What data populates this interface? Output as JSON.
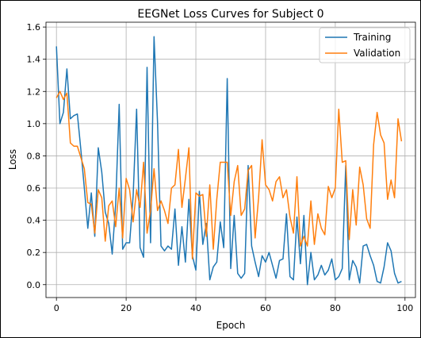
{
  "chart_data": {
    "type": "line",
    "title": "EEGNet Loss Curves for Subject 0",
    "xlabel": "Epoch",
    "ylabel": "Loss",
    "xlim": [
      -3,
      103
    ],
    "ylim": [
      -0.08,
      1.63
    ],
    "xticks": [
      0,
      20,
      40,
      60,
      80,
      100
    ],
    "yticks": [
      0.0,
      0.2,
      0.4,
      0.6,
      0.8,
      1.0,
      1.2,
      1.4,
      1.6
    ],
    "xtick_labels": [
      "0",
      "20",
      "40",
      "60",
      "80",
      "100"
    ],
    "ytick_labels": [
      "0.0",
      "0.2",
      "0.4",
      "0.6",
      "0.8",
      "1.0",
      "1.2",
      "1.4",
      "1.6"
    ],
    "grid": true,
    "legend_position": "top-right",
    "x": [
      0,
      1,
      2,
      3,
      4,
      5,
      6,
      7,
      8,
      9,
      10,
      11,
      12,
      13,
      14,
      15,
      16,
      17,
      18,
      19,
      20,
      21,
      22,
      23,
      24,
      25,
      26,
      27,
      28,
      29,
      30,
      31,
      32,
      33,
      34,
      35,
      36,
      37,
      38,
      39,
      40,
      41,
      42,
      43,
      44,
      45,
      46,
      47,
      48,
      49,
      50,
      51,
      52,
      53,
      54,
      55,
      56,
      57,
      58,
      59,
      60,
      61,
      62,
      63,
      64,
      65,
      66,
      67,
      68,
      69,
      70,
      71,
      72,
      73,
      74,
      75,
      76,
      77,
      78,
      79,
      80,
      81,
      82,
      83,
      84,
      85,
      86,
      87,
      88,
      89,
      90,
      91,
      92,
      93,
      94,
      95,
      96,
      97,
      98,
      99
    ],
    "series": [
      {
        "name": "Training",
        "color": "#1f77b4",
        "values": [
          1.48,
          1.0,
          1.07,
          1.34,
          1.03,
          1.05,
          1.06,
          0.84,
          0.6,
          0.35,
          0.57,
          0.3,
          0.85,
          0.7,
          0.45,
          0.38,
          0.19,
          0.5,
          1.12,
          0.22,
          0.26,
          0.26,
          0.55,
          1.09,
          0.23,
          0.17,
          1.35,
          0.26,
          1.54,
          1.01,
          0.24,
          0.21,
          0.24,
          0.22,
          0.47,
          0.12,
          0.36,
          0.14,
          0.53,
          0.18,
          0.09,
          0.58,
          0.25,
          0.38,
          0.03,
          0.11,
          0.14,
          0.39,
          0.23,
          1.28,
          0.1,
          0.43,
          0.07,
          0.04,
          0.07,
          0.74,
          0.24,
          0.14,
          0.05,
          0.18,
          0.14,
          0.2,
          0.12,
          0.04,
          0.15,
          0.16,
          0.44,
          0.05,
          0.03,
          0.42,
          0.13,
          0.43,
          0.0,
          0.2,
          0.03,
          0.06,
          0.12,
          0.06,
          0.09,
          0.16,
          0.03,
          0.05,
          0.1,
          0.74,
          0.03,
          0.15,
          0.11,
          0.01,
          0.24,
          0.25,
          0.18,
          0.12,
          0.02,
          0.01,
          0.11,
          0.26,
          0.21,
          0.07,
          0.01,
          0.02
        ]
      },
      {
        "name": "Validation",
        "color": "#ff7f0e",
        "values": [
          1.16,
          1.2,
          1.15,
          1.19,
          0.88,
          0.86,
          0.86,
          0.79,
          0.72,
          0.51,
          0.5,
          0.32,
          0.59,
          0.54,
          0.27,
          0.49,
          0.52,
          0.36,
          0.6,
          0.29,
          0.66,
          0.59,
          0.39,
          0.59,
          0.48,
          0.76,
          0.32,
          0.46,
          0.72,
          0.46,
          0.52,
          0.46,
          0.38,
          0.6,
          0.62,
          0.84,
          0.48,
          0.66,
          0.85,
          0.16,
          0.57,
          0.55,
          0.56,
          0.3,
          0.62,
          0.22,
          0.53,
          0.76,
          0.76,
          0.76,
          0.43,
          0.64,
          0.74,
          0.43,
          0.47,
          0.71,
          0.74,
          0.29,
          0.54,
          0.9,
          0.62,
          0.59,
          0.52,
          0.64,
          0.67,
          0.54,
          0.59,
          0.42,
          0.32,
          0.67,
          0.24,
          0.3,
          0.24,
          0.52,
          0.25,
          0.44,
          0.35,
          0.31,
          0.61,
          0.54,
          0.6,
          1.09,
          0.76,
          0.77,
          0.28,
          0.59,
          0.37,
          0.73,
          0.62,
          0.41,
          0.35,
          0.87,
          1.07,
          0.93,
          0.88,
          0.53,
          0.65,
          0.54,
          1.03,
          0.89
        ]
      }
    ]
  }
}
